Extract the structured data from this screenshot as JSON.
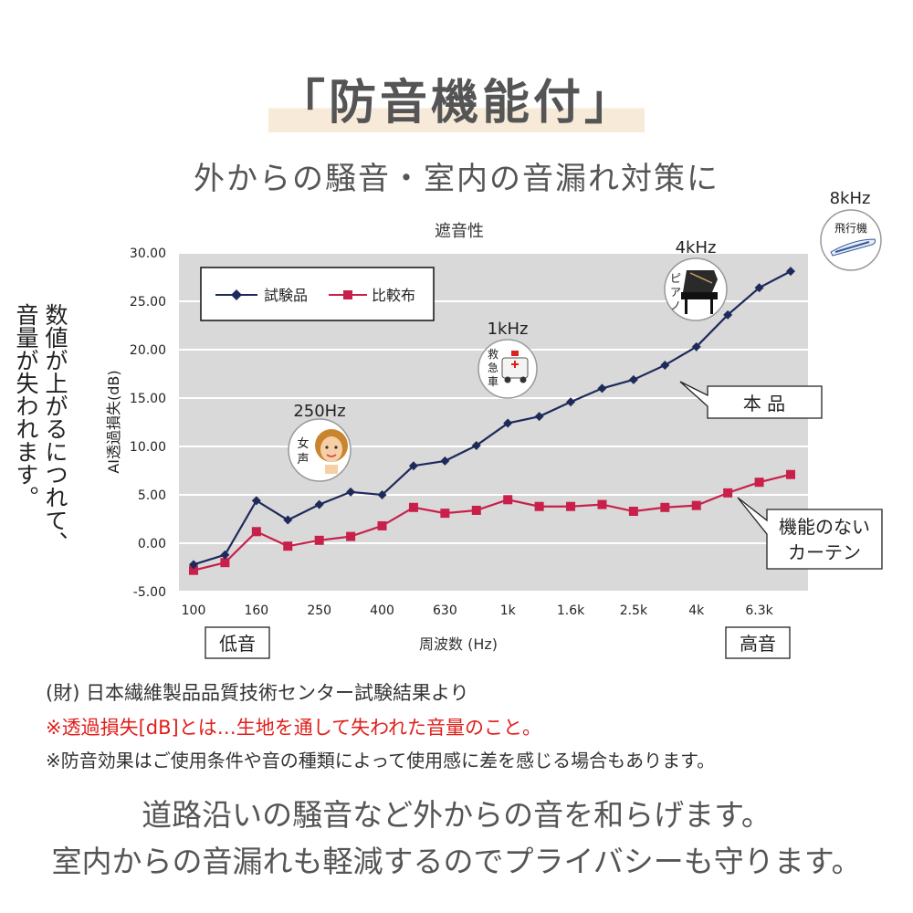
{
  "header": {
    "title": "「防音機能付」",
    "subtitle": "外からの騒音・室内の音漏れ対策に"
  },
  "side_text": {
    "line1": "数値が上がるにつれて、",
    "line2": "音量が失われます。"
  },
  "chart_data": {
    "type": "line",
    "title": "遮音性",
    "ylabel": "AI透過損失(dB)",
    "xlabel": "周波数 (Hz)",
    "ylim": [
      -5,
      30
    ],
    "yticks": [
      "30.00",
      "25.00",
      "20.00",
      "15.00",
      "10.00",
      "5.00",
      "0.00",
      "-5.00"
    ],
    "ytick_values": [
      30,
      25,
      20,
      15,
      10,
      5,
      0,
      -5
    ],
    "x": [
      "100",
      "125",
      "160",
      "200",
      "250",
      "315",
      "400",
      "500",
      "630",
      "800",
      "1k",
      "1.25k",
      "1.6k",
      "2k",
      "2.5k",
      "3.15k",
      "4k",
      "5k",
      "6.3k",
      "8k"
    ],
    "xtick_labels": [
      {
        "index": 0,
        "label": "100"
      },
      {
        "index": 2,
        "label": "160"
      },
      {
        "index": 4,
        "label": "250"
      },
      {
        "index": 6,
        "label": "400"
      },
      {
        "index": 8,
        "label": "630"
      },
      {
        "index": 10,
        "label": "1k"
      },
      {
        "index": 12,
        "label": "1.6k"
      },
      {
        "index": 14,
        "label": "2.5k"
      },
      {
        "index": 16,
        "label": "4k"
      },
      {
        "index": 18,
        "label": "6.3k"
      }
    ],
    "series": [
      {
        "name": "試験品",
        "color": "#1e2a5a",
        "marker": "diamond",
        "values": [
          -2.2,
          -1.2,
          4.4,
          2.4,
          4.0,
          5.3,
          5.0,
          8.0,
          8.5,
          10.1,
          12.4,
          13.1,
          14.6,
          16.0,
          16.9,
          18.4,
          20.3,
          23.6,
          26.4,
          28.1
        ]
      },
      {
        "name": "比較布",
        "color": "#c8204a",
        "marker": "square",
        "values": [
          -2.8,
          -2.0,
          1.2,
          -0.3,
          0.3,
          0.7,
          1.8,
          3.7,
          3.1,
          3.4,
          4.5,
          3.8,
          3.8,
          4.0,
          3.3,
          3.7,
          3.9,
          5.2,
          6.3,
          7.1
        ]
      }
    ],
    "legend_position": "top-left",
    "grid": true,
    "annotations": {
      "freq_labels": [
        {
          "hz": "250Hz",
          "tag": "女声",
          "index": 4
        },
        {
          "hz": "1kHz",
          "tag": "救急車",
          "index": 10
        },
        {
          "hz": "4kHz",
          "tag": "ピアノ",
          "index": 16
        },
        {
          "hz": "8kHz",
          "tag": "飛行機",
          "index": 19
        }
      ],
      "callout_product": "本 品",
      "callout_compare": "機能のない\nカーテン",
      "low_label": "低音",
      "high_label": "高音"
    }
  },
  "notes": {
    "source": "(財) 日本繊維製品品質技術センター試験結果より",
    "definition": "※透過損失[dB]とは…生地を通して失われた音量のこと。",
    "disclaimer": "※防音効果はご使用条件や音の種類によって使用感に差を感じる場合もあります。"
  },
  "bottom": {
    "line1": "道路沿いの騒音など外からの音を和らげます。",
    "line2": "室内からの音漏れも軽減するのでプライバシーも守ります。"
  }
}
